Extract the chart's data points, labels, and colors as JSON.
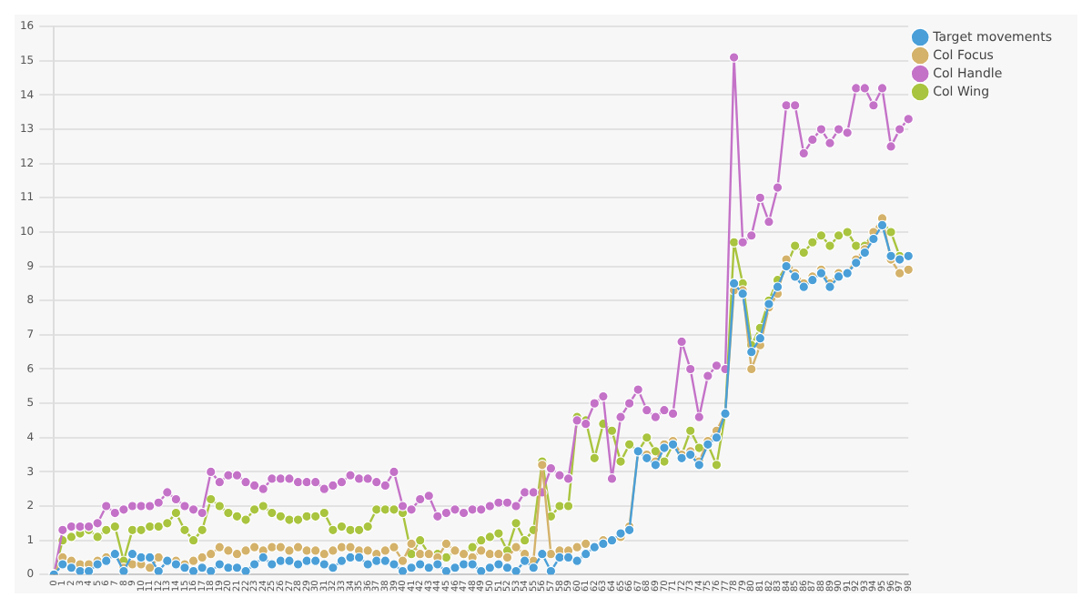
{
  "chart_data": {
    "type": "line",
    "categories": [
      "0",
      "1",
      "2",
      "3",
      "4",
      "5",
      "6",
      "7",
      "8",
      "9",
      "10",
      "11",
      "12",
      "13",
      "14",
      "15",
      "16",
      "17",
      "18",
      "19",
      "20",
      "21",
      "22",
      "23",
      "24",
      "25",
      "26",
      "27",
      "28",
      "29",
      "30",
      "31",
      "32",
      "33",
      "34",
      "35",
      "36",
      "37",
      "38",
      "39",
      "40",
      "41",
      "42",
      "43",
      "44",
      "45",
      "46",
      "47",
      "48",
      "49",
      "50",
      "51",
      "52",
      "53",
      "54",
      "55",
      "56",
      "57",
      "58",
      "59",
      "60",
      "61",
      "62",
      "63",
      "64",
      "65",
      "66",
      "67",
      "68",
      "69",
      "70",
      "71",
      "72",
      "73",
      "74",
      "75",
      "76",
      "77",
      "78",
      "79",
      "80",
      "81",
      "82",
      "83",
      "84",
      "85",
      "86",
      "87",
      "88",
      "89",
      "90",
      "91",
      "92",
      "93",
      "94",
      "95",
      "96",
      "97",
      "98"
    ],
    "series": [
      {
        "name": "Target movements",
        "color": "#4a9fd8",
        "values": [
          0,
          0.3,
          0.2,
          0.1,
          0.1,
          0.3,
          0.4,
          0.6,
          0.1,
          0.6,
          0.5,
          0.5,
          0.1,
          0.4,
          0.3,
          0.2,
          0.1,
          0.2,
          0.1,
          0.3,
          0.2,
          0.2,
          0.1,
          0.3,
          0.5,
          0.3,
          0.4,
          0.4,
          0.3,
          0.4,
          0.4,
          0.3,
          0.2,
          0.4,
          0.5,
          0.5,
          0.3,
          0.4,
          0.4,
          0.3,
          0.1,
          0.2,
          0.3,
          0.2,
          0.3,
          0.1,
          0.2,
          0.3,
          0.3,
          0.1,
          0.2,
          0.3,
          0.2,
          0.1,
          0.4,
          0.2,
          0.6,
          0.1,
          0.5,
          0.5,
          0.4,
          0.6,
          0.8,
          0.9,
          1.0,
          1.2,
          1.3,
          3.6,
          3.4,
          3.2,
          3.7,
          3.8,
          3.4,
          3.5,
          3.2,
          3.8,
          4.0,
          4.7,
          8.5,
          8.2,
          6.5,
          6.9,
          7.9,
          8.4,
          9.0,
          8.7,
          8.4,
          8.6,
          8.8,
          8.4,
          8.7,
          8.8,
          9.1,
          9.4,
          9.8,
          10.2,
          9.3,
          9.2,
          9.3
        ]
      },
      {
        "name": "Col Focus",
        "color": "#d4b26a",
        "values": [
          0,
          0.5,
          0.4,
          0.3,
          0.3,
          0.4,
          0.5,
          0.6,
          0.2,
          0.3,
          0.3,
          0.2,
          0.5,
          0.4,
          0.4,
          0.3,
          0.4,
          0.5,
          0.6,
          0.8,
          0.7,
          0.6,
          0.7,
          0.8,
          0.7,
          0.8,
          0.8,
          0.7,
          0.8,
          0.7,
          0.7,
          0.6,
          0.7,
          0.8,
          0.8,
          0.7,
          0.7,
          0.6,
          0.7,
          0.8,
          0.4,
          0.9,
          0.6,
          0.6,
          0.5,
          0.9,
          0.7,
          0.6,
          0.5,
          0.7,
          0.6,
          0.6,
          0.5,
          0.8,
          0.6,
          0.4,
          3.2,
          0.6,
          0.7,
          0.7,
          0.8,
          0.9,
          0.8,
          1.0,
          1.0,
          1.1,
          1.4,
          3.6,
          3.5,
          3.3,
          3.8,
          3.9,
          3.5,
          3.6,
          3.3,
          3.9,
          4.2,
          4.7,
          8.3,
          8.3,
          6.0,
          6.7,
          7.8,
          8.2,
          9.2,
          8.8,
          8.5,
          8.7,
          8.9,
          8.5,
          8.8,
          8.8,
          9.2,
          9.5,
          10.0,
          10.4,
          9.2,
          8.8,
          8.9
        ]
      },
      {
        "name": "Col Handle",
        "color": "#c472c8",
        "values": [
          0,
          1.3,
          1.4,
          1.4,
          1.4,
          1.5,
          2.0,
          1.8,
          1.9,
          2.0,
          2.0,
          2.0,
          2.1,
          2.4,
          2.2,
          2.0,
          1.9,
          1.8,
          3.0,
          2.7,
          2.9,
          2.9,
          2.7,
          2.6,
          2.5,
          2.8,
          2.8,
          2.8,
          2.7,
          2.7,
          2.7,
          2.5,
          2.6,
          2.7,
          2.9,
          2.8,
          2.8,
          2.7,
          2.6,
          3.0,
          2.0,
          1.9,
          2.2,
          2.3,
          1.7,
          1.8,
          1.9,
          1.8,
          1.9,
          1.9,
          2.0,
          2.1,
          2.1,
          2.0,
          2.4,
          2.4,
          2.4,
          3.1,
          2.9,
          2.8,
          4.5,
          4.4,
          5.0,
          5.2,
          2.8,
          4.6,
          5.0,
          5.4,
          4.8,
          4.6,
          4.8,
          4.7,
          6.8,
          6.0,
          4.6,
          5.8,
          6.1,
          6.0,
          15.1,
          9.7,
          9.9,
          11.0,
          10.3,
          11.3,
          13.7,
          13.7,
          12.3,
          12.7,
          13.0,
          12.6,
          13.0,
          12.9,
          14.2,
          14.2,
          13.7,
          14.2,
          12.5,
          13.0,
          13.3
        ]
      },
      {
        "name": "Col Wing",
        "color": "#a9c43e",
        "values": [
          0,
          1.0,
          1.1,
          1.2,
          1.3,
          1.1,
          1.3,
          1.4,
          0.4,
          1.3,
          1.3,
          1.4,
          1.4,
          1.5,
          1.8,
          1.3,
          1.0,
          1.3,
          2.2,
          2.0,
          1.8,
          1.7,
          1.6,
          1.9,
          2.0,
          1.8,
          1.7,
          1.6,
          1.6,
          1.7,
          1.7,
          1.8,
          1.3,
          1.4,
          1.3,
          1.3,
          1.4,
          1.9,
          1.9,
          1.9,
          1.8,
          0.6,
          1.0,
          0.6,
          0.6,
          0.5,
          0.7,
          0.6,
          0.8,
          1.0,
          1.1,
          1.2,
          0.7,
          1.5,
          1.0,
          1.3,
          3.3,
          1.7,
          2.0,
          2.0,
          4.6,
          4.5,
          3.4,
          4.4,
          4.2,
          3.3,
          3.8,
          3.6,
          4.0,
          3.6,
          3.3,
          3.8,
          3.5,
          4.2,
          3.7,
          3.8,
          3.2,
          4.7,
          9.7,
          8.5,
          6.7,
          7.2,
          8.0,
          8.6,
          9.0,
          9.6,
          9.4,
          9.7,
          9.9,
          9.6,
          9.9,
          10.0,
          9.6,
          9.6,
          10.0,
          10.3,
          10.0,
          9.3,
          9.3
        ]
      }
    ],
    "ylim": [
      0,
      16
    ],
    "yticks": [
      0,
      1,
      2,
      3,
      4,
      5,
      6,
      7,
      8,
      9,
      10,
      11,
      12,
      13,
      14,
      15,
      16
    ],
    "grid": "y",
    "legend": "top right",
    "marker": "circle",
    "line_style": "solid"
  }
}
